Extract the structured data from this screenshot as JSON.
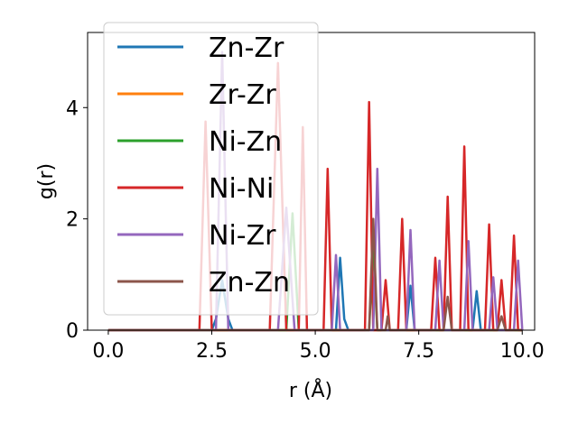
{
  "chart_data": {
    "type": "line",
    "xlabel": "r (Å)",
    "ylabel": "g(r)",
    "xlim": [
      -0.5,
      10.3
    ],
    "ylim": [
      0,
      5.35
    ],
    "xticks": [
      0.0,
      2.5,
      5.0,
      7.5,
      10.0
    ],
    "xtick_labels": [
      "0.0",
      "2.5",
      "5.0",
      "7.5",
      "10.0"
    ],
    "yticks": [
      0,
      2,
      4
    ],
    "ytick_labels": [
      "0",
      "2",
      "4"
    ],
    "grid": false,
    "legend": "top-left",
    "series": [
      {
        "name": "Zn-Zr",
        "color": "#1f77b4",
        "x": [
          0,
          2.5,
          2.6,
          2.75,
          2.9,
          3.0,
          5.5,
          5.6,
          5.7,
          5.8,
          7.2,
          7.3,
          7.4,
          8.8,
          8.9,
          9.0,
          10.0
        ],
        "y": [
          0,
          0,
          0.2,
          0.9,
          0.2,
          0,
          0,
          1.3,
          0.2,
          0,
          0,
          0.8,
          0,
          0,
          0.7,
          0,
          0
        ]
      },
      {
        "name": "Zr-Zr",
        "color": "#ff7f0e",
        "x": [
          0,
          3.0,
          3.05,
          3.1,
          10.0
        ],
        "y": [
          0,
          0,
          0,
          0,
          0
        ]
      },
      {
        "name": "Ni-Zn",
        "color": "#2ca02c",
        "x": [
          0,
          4.3,
          4.45,
          4.6,
          6.3,
          6.4,
          6.5,
          10.0
        ],
        "y": [
          0,
          0,
          2.1,
          0,
          0,
          1.5,
          0,
          0
        ]
      },
      {
        "name": "Ni-Ni",
        "color": "#d62728",
        "x": [
          0,
          2.2,
          2.35,
          2.5,
          3.9,
          4.1,
          4.3,
          4.6,
          4.7,
          4.8,
          5.2,
          5.3,
          5.4,
          6.2,
          6.3,
          6.4,
          6.6,
          6.7,
          6.8,
          7.0,
          7.1,
          7.2,
          7.8,
          7.9,
          8.0,
          8.1,
          8.2,
          8.3,
          8.5,
          8.6,
          8.7,
          9.1,
          9.2,
          9.3,
          9.4,
          9.5,
          9.6,
          9.7,
          9.8,
          9.9,
          10.0
        ],
        "y": [
          0,
          0,
          3.75,
          0,
          0,
          4.8,
          0,
          0,
          3.65,
          0,
          0,
          2.9,
          0,
          0,
          4.1,
          0,
          0,
          0.9,
          0,
          0,
          2.0,
          0,
          0,
          1.3,
          0,
          0,
          2.4,
          0,
          0,
          3.3,
          0,
          0,
          1.9,
          0,
          0,
          0.9,
          0,
          0,
          1.7,
          0,
          0
        ]
      },
      {
        "name": "Ni-Zr",
        "color": "#9467bd",
        "x": [
          0,
          2.6,
          2.75,
          2.9,
          4.1,
          4.3,
          4.5,
          5.4,
          5.5,
          5.6,
          6.4,
          6.5,
          6.6,
          7.2,
          7.3,
          7.4,
          7.9,
          8.0,
          8.1,
          8.6,
          8.7,
          8.8,
          9.2,
          9.3,
          9.4,
          9.8,
          9.9,
          10.0
        ],
        "y": [
          0,
          0,
          5.0,
          0,
          0,
          2.2,
          0,
          0,
          1.35,
          0,
          0,
          2.9,
          0,
          0,
          1.8,
          0,
          0,
          1.25,
          0,
          0,
          1.6,
          0,
          0,
          0.95,
          0,
          0,
          1.25,
          0
        ]
      },
      {
        "name": "Zn-Zn",
        "color": "#8c564b",
        "x": [
          0,
          6.3,
          6.4,
          6.5,
          6.7,
          6.75,
          6.8,
          8.1,
          8.2,
          8.3,
          9.4,
          9.5,
          9.6,
          10.0
        ],
        "y": [
          0,
          0,
          2.0,
          0,
          0,
          0.25,
          0,
          0,
          0.6,
          0,
          0,
          0.25,
          0,
          0
        ]
      }
    ]
  }
}
